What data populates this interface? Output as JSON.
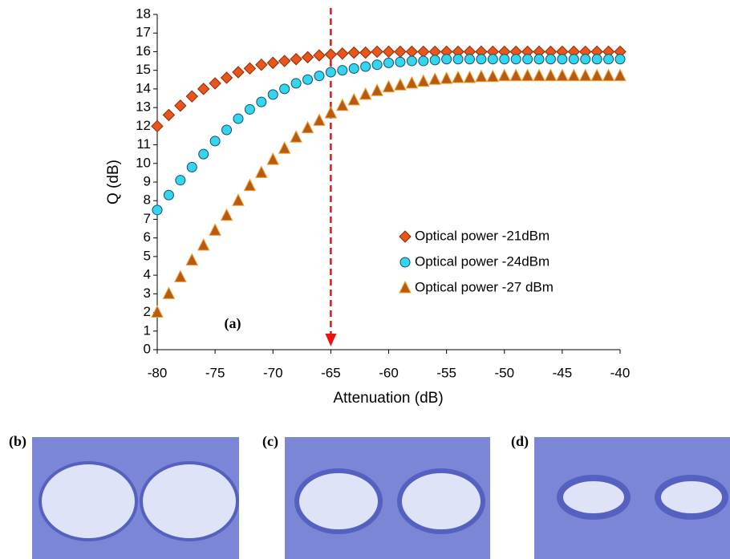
{
  "chart_data": {
    "type": "scatter",
    "annotation": "(a)",
    "x_label": "Attenuation (dB)",
    "y_label": "Q (dB)",
    "x": [
      -80,
      -79,
      -78,
      -77,
      -76,
      -75,
      -74,
      -73,
      -72,
      -71,
      -70,
      -69,
      -68,
      -67,
      -66,
      -65,
      -64,
      -63,
      -62,
      -61,
      -60,
      -59,
      -58,
      -57,
      -56,
      -55,
      -54,
      -53,
      -52,
      -51,
      -50,
      -49,
      -48,
      -47,
      -46,
      -45,
      -44,
      -43,
      -42,
      -41,
      -40
    ],
    "series": [
      {
        "name": "Optical power -21dBm",
        "marker": "diamond",
        "color": "#e8561c",
        "edge": "#8a2a08",
        "values": [
          12.0,
          12.6,
          13.1,
          13.6,
          14.0,
          14.3,
          14.6,
          14.9,
          15.1,
          15.3,
          15.4,
          15.5,
          15.6,
          15.7,
          15.8,
          15.85,
          15.9,
          15.95,
          15.95,
          16.0,
          16.0,
          16.0,
          16.0,
          16.0,
          16.0,
          16.0,
          16.0,
          16.0,
          16.0,
          16.0,
          16.0,
          16.0,
          16.0,
          16.0,
          16.0,
          16.0,
          16.0,
          16.0,
          16.0,
          16.0,
          16.0
        ]
      },
      {
        "name": "Optical power -24dBm",
        "marker": "circle",
        "color": "#33d6ee",
        "edge": "#1a4a6a",
        "values": [
          7.5,
          8.3,
          9.1,
          9.8,
          10.5,
          11.2,
          11.8,
          12.4,
          12.9,
          13.3,
          13.7,
          14.0,
          14.3,
          14.5,
          14.7,
          14.9,
          15.0,
          15.1,
          15.2,
          15.3,
          15.4,
          15.45,
          15.5,
          15.5,
          15.55,
          15.6,
          15.6,
          15.6,
          15.6,
          15.6,
          15.6,
          15.6,
          15.6,
          15.6,
          15.6,
          15.6,
          15.6,
          15.6,
          15.6,
          15.6,
          15.6
        ]
      },
      {
        "name": "Optical power -27 dBm",
        "marker": "triangle",
        "color": "#b85a12",
        "edge": "#f0a030",
        "values": [
          2.0,
          3.0,
          3.9,
          4.8,
          5.6,
          6.4,
          7.2,
          8.0,
          8.8,
          9.5,
          10.2,
          10.8,
          11.4,
          11.9,
          12.3,
          12.7,
          13.1,
          13.4,
          13.7,
          13.9,
          14.1,
          14.2,
          14.3,
          14.4,
          14.5,
          14.55,
          14.6,
          14.6,
          14.65,
          14.65,
          14.7,
          14.7,
          14.7,
          14.7,
          14.7,
          14.7,
          14.7,
          14.7,
          14.7,
          14.7,
          14.7
        ]
      }
    ],
    "reference_line": {
      "x": -65,
      "color": "#ee1111"
    },
    "xlim": [
      -80,
      -40
    ],
    "xticks": [
      -80,
      -75,
      -70,
      -65,
      -60,
      -55,
      -50,
      -45,
      -40
    ],
    "ylim": [
      0,
      18
    ],
    "yticks": [
      0,
      1,
      2,
      3,
      4,
      5,
      6,
      7,
      8,
      9,
      10,
      11,
      12,
      13,
      14,
      15,
      16,
      17,
      18
    ],
    "grid": false
  },
  "eye_labels": [
    "(b)",
    "(c)",
    "(d)"
  ]
}
